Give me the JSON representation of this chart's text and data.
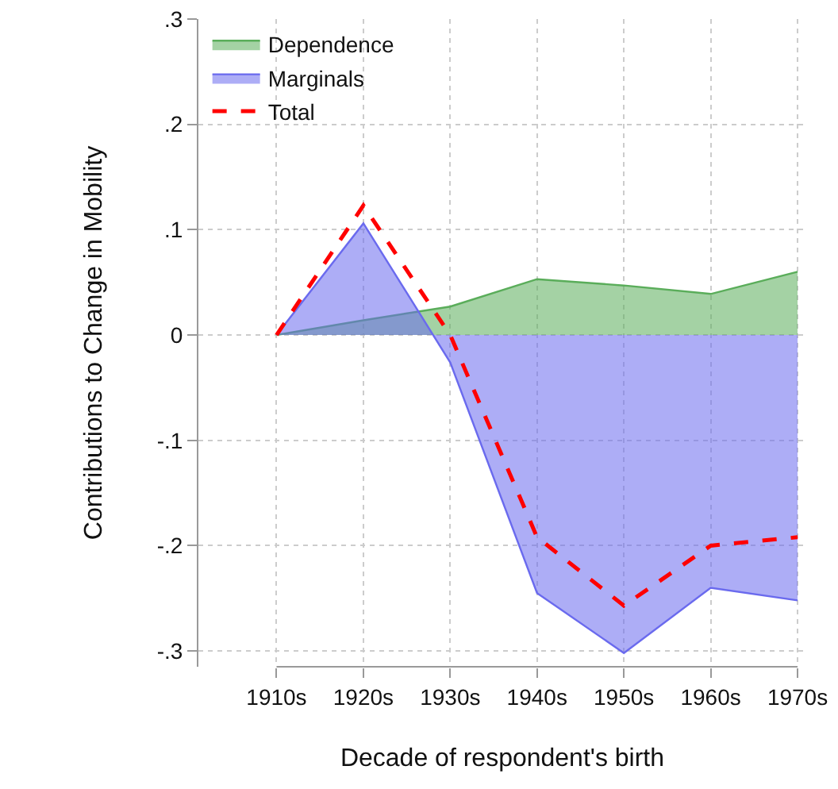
{
  "chart_data": {
    "type": "area",
    "xlabel": "Decade of respondent's birth",
    "ylabel": "Contributions to Change in Mobility",
    "categories": [
      "1910s",
      "1920s",
      "1930s",
      "1940s",
      "1950s",
      "1960s",
      "1970s"
    ],
    "series": [
      {
        "name": "Dependence",
        "color": "#5aad5a",
        "values": [
          0,
          0.014,
          0.027,
          0.053,
          0.047,
          0.039,
          0.06
        ]
      },
      {
        "name": "Marginals",
        "color": "#6a6aee",
        "values": [
          0,
          0.106,
          -0.026,
          -0.245,
          -0.302,
          -0.24,
          -0.252
        ]
      },
      {
        "name": "Total",
        "type": "line",
        "line_style": "dashed",
        "color": "#ff0000",
        "values": [
          0,
          0.123,
          0,
          -0.192,
          -0.257,
          -0.2,
          -0.192
        ]
      }
    ],
    "ylim": [
      -0.315,
      0.3
    ],
    "yticks": [
      {
        "value": -0.3,
        "label": "-.3"
      },
      {
        "value": -0.2,
        "label": "-.2"
      },
      {
        "value": -0.1,
        "label": "-.1"
      },
      0,
      {
        "value": 0.1,
        "label": ".1"
      },
      {
        "value": 0.2,
        "label": ".2"
      },
      {
        "value": 0.3,
        "label": ".3"
      }
    ],
    "grid": true,
    "legend": "top left"
  }
}
